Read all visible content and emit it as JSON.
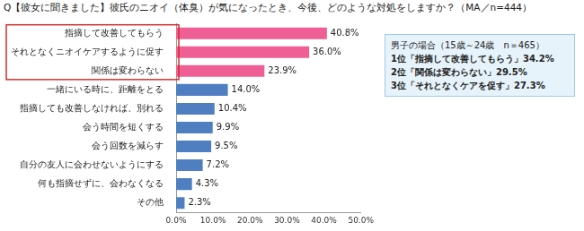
{
  "chart_data": {
    "type": "bar",
    "orientation": "horizontal",
    "title": "Q【彼女に聞きました】彼氏のニオイ（体臭）が気になったとき、今後、どのような対処をしますか？（MA／n=444）",
    "categories": [
      "指摘して改善してもらう",
      "それとなくニオイケアするように促す",
      "関係は変わらない",
      "一緒にいる時に、距離をとる",
      "指摘しても改善しなければ、別れる",
      "会う時間を短くする",
      "会う回数を減らす",
      "自分の友人に会わせないようにする",
      "何も指摘せずに、会わなくなる",
      "その他"
    ],
    "values": [
      40.8,
      36.0,
      23.9,
      14.0,
      10.4,
      9.9,
      9.5,
      7.2,
      4.3,
      2.3
    ],
    "value_labels": [
      "40.8%",
      "36.0%",
      "23.9%",
      "14.0%",
      "10.4%",
      "9.9%",
      "9.5%",
      "7.2%",
      "4.3%",
      "2.3%"
    ],
    "data_labels": true,
    "colors": [
      "#ef5f95",
      "#ef5f95",
      "#ef5f95",
      "#4f7fc0",
      "#4f7fc0",
      "#4f7fc0",
      "#4f7fc0",
      "#4f7fc0",
      "#4f7fc0",
      "#4f7fc0"
    ],
    "xlim": [
      0,
      50
    ],
    "xticks": [
      {
        "value": 0,
        "label": "0.0%"
      },
      {
        "value": 10,
        "label": "10.0%"
      },
      {
        "value": 20,
        "label": "20.0%"
      },
      {
        "value": 30,
        "label": "30.0%"
      },
      {
        "value": 40,
        "label": "40.0%"
      },
      {
        "value": 50,
        "label": "50.0%"
      }
    ],
    "grid": false,
    "annotations": [
      "男子の場合（15歳～24歳　n＝465）",
      "1位「指摘して改善してもらう」34.2%",
      "2位「関係は変わらない」29.5%",
      "3位「それとなくケアを促す」27.3%"
    ]
  }
}
